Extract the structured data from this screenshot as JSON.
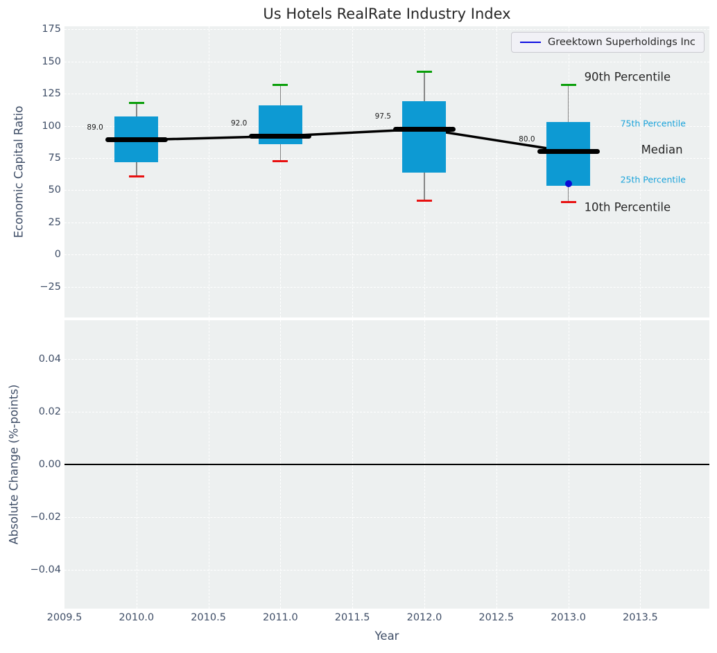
{
  "legend": {
    "label": "Greektown Superholdings Inc"
  },
  "annotations": {
    "p90": "90th Percentile",
    "p75": "75th Percentile",
    "median": "Median",
    "p25": "25th Percentile",
    "p10": "10th Percentile"
  },
  "chart_data": {
    "type": "box",
    "title": "Us Hotels RealRate Industry Index",
    "xlabel": "Year",
    "xlim": [
      2009.5,
      2013.98
    ],
    "xticks": [
      {
        "v": 2009.5,
        "label": "2009.5"
      },
      {
        "v": 2010.0,
        "label": "2010.0"
      },
      {
        "v": 2010.5,
        "label": "2010.5"
      },
      {
        "v": 2011.0,
        "label": "2011.0"
      },
      {
        "v": 2011.5,
        "label": "2011.5"
      },
      {
        "v": 2012.0,
        "label": "2012.0"
      },
      {
        "v": 2012.5,
        "label": "2012.5"
      },
      {
        "v": 2013.0,
        "label": "2013.0"
      },
      {
        "v": 2013.5,
        "label": "2013.5"
      }
    ],
    "top_panel": {
      "ylabel": "Economic Capital Ratio",
      "ylim": [
        -48.7,
        177.2
      ],
      "yticks": [
        {
          "v": 175,
          "label": "175"
        },
        {
          "v": 150,
          "label": "150"
        },
        {
          "v": 125,
          "label": "125"
        },
        {
          "v": 100,
          "label": "100"
        },
        {
          "v": 75,
          "label": "75"
        },
        {
          "v": 50,
          "label": "50"
        },
        {
          "v": 25,
          "label": "25"
        },
        {
          "v": 0,
          "label": "0"
        },
        {
          "v": -25,
          "label": "−25"
        }
      ],
      "boxes": [
        {
          "year": 2010,
          "p10": 61,
          "p25": 72,
          "median": 89,
          "p75": 107.5,
          "p90": 118,
          "median_label": "89.0"
        },
        {
          "year": 2011,
          "p10": 72.5,
          "p25": 85.5,
          "median": 92,
          "p75": 116,
          "p90": 132,
          "median_label": "92.0"
        },
        {
          "year": 2012,
          "p10": 42,
          "p25": 63.5,
          "median": 97.5,
          "p75": 119,
          "p90": 142,
          "median_label": "97.5"
        },
        {
          "year": 2013,
          "p10": 41,
          "p25": 53.5,
          "median": 80,
          "p75": 103,
          "p90": 132,
          "median_label": "80.0"
        }
      ],
      "company_series": {
        "name": "Greektown Superholdings Inc",
        "points": [
          {
            "x": 2013,
            "y": 55
          }
        ]
      }
    },
    "bottom_panel": {
      "ylabel": "Absolute Change (%-points)",
      "ylim": [
        -0.0547,
        0.0547
      ],
      "yticks": [
        {
          "v": 0.04,
          "label": "0.04"
        },
        {
          "v": 0.02,
          "label": "0.02"
        },
        {
          "v": 0.0,
          "label": "0.00"
        },
        {
          "v": -0.02,
          "label": "−0.02"
        },
        {
          "v": -0.04,
          "label": "−0.04"
        }
      ],
      "zero_line": 0.0
    }
  },
  "colors": {
    "box_fill": "#0d9ad3",
    "whisker": "#858585",
    "cap_top": "#089e08",
    "cap_bottom": "#e81010",
    "median_line": "#000000",
    "company_blue": "#0b0bd6",
    "cyan_text": "#1ba3da",
    "dark_text": "#262626",
    "tick_text": "#3e4d66",
    "axes_bg": "#edf0f0",
    "grid": "#ffffff"
  }
}
